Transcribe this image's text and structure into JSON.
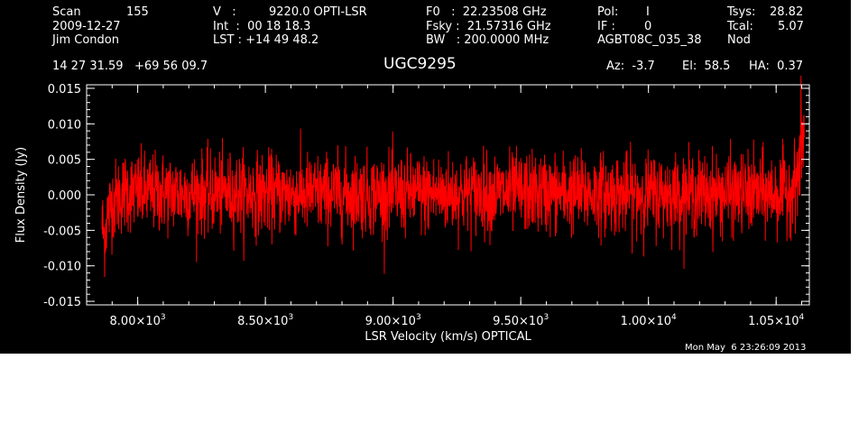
{
  "header": {
    "col1": [
      "Scan",
      "155",
      "2009-12-27",
      "Jim Condon"
    ],
    "col2": [
      "V   :",
      "9220.0 OPTI-LSR",
      "Int  :  00 18 18.3",
      "LST : +14 49 48.2"
    ],
    "col3": [
      "F0   :  22.23508 GHz",
      "Fsky :  21.57316 GHz",
      "BW   : 200.0000 MHz"
    ],
    "col4": [
      "Pol:",
      "I",
      "IF :",
      "0",
      "AGBT08C_035_38"
    ],
    "col5": [
      "Tsys:",
      "28.82",
      "Tcal:",
      "5.07",
      "Nod"
    ],
    "coords": "14 27 31.59   +69 56 09.7",
    "source": "UGC9295",
    "az": "Az:  -3.7",
    "el": "El:  58.5",
    "ha": "HA:  0.37",
    "timestamp": "Mon May  6 23:26:09 2013"
  },
  "chart_data": {
    "type": "line",
    "title": "UGC9295",
    "xlabel": "LSR Velocity (km/s) OPTICAL",
    "ylabel": "Flux Density (Jy)",
    "xlim": [
      7800,
      10630
    ],
    "ylim": [
      -0.0155,
      0.0155
    ],
    "yticks": [
      {
        "v": 0.015,
        "label": "0.015"
      },
      {
        "v": 0.01,
        "label": "0.010"
      },
      {
        "v": 0.005,
        "label": "0.005"
      },
      {
        "v": 0.0,
        "label": "0.000"
      },
      {
        "v": -0.005,
        "label": "-0.005"
      },
      {
        "v": -0.01,
        "label": "-0.010"
      },
      {
        "v": -0.015,
        "label": "-0.015"
      }
    ],
    "xticks": [
      {
        "v": 8000,
        "mant": "8.00×10",
        "exp": "3"
      },
      {
        "v": 8500,
        "mant": "8.50×10",
        "exp": "3"
      },
      {
        "v": 9000,
        "mant": "9.00×10",
        "exp": "3"
      },
      {
        "v": 9500,
        "mant": "9.50×10",
        "exp": "3"
      },
      {
        "v": 10000,
        "mant": "1.00×10",
        "exp": "4"
      },
      {
        "v": 10500,
        "mant": "1.05×10",
        "exp": "4"
      }
    ],
    "series": [
      {
        "color": "#ff0000",
        "noise_rms": 0.0028,
        "x": [
          7860,
          7870,
          7880,
          7900,
          7950,
          8000,
          8500,
          9000,
          9500,
          10000,
          10500,
          10540,
          10560,
          10580,
          10590,
          10600,
          10605,
          10610
        ],
        "y": [
          -0.004,
          -0.006,
          -0.003,
          -0.001,
          0.0005,
          0.0003,
          0.0002,
          0.0001,
          0.0003,
          0.0001,
          0.0002,
          0.0004,
          0.001,
          0.002,
          0.004,
          0.007,
          0.009,
          0.008
        ]
      }
    ],
    "grid": false,
    "background": "#000000",
    "axis_color": "#ffffff"
  }
}
